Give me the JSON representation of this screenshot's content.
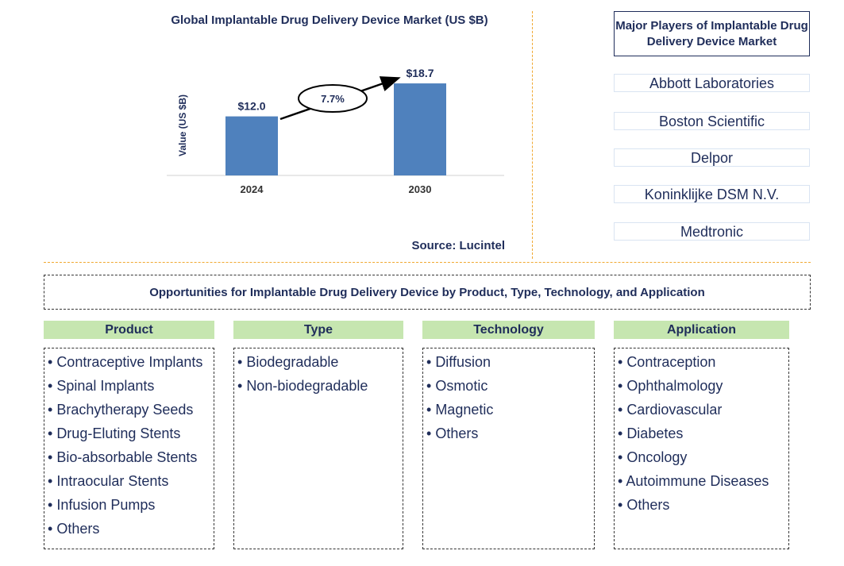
{
  "chart_data": {
    "type": "bar",
    "title": "Global Implantable Drug Delivery Device Market (US $B)",
    "ylabel": "Value (US $B)",
    "xlabel": "",
    "categories": [
      "2024",
      "2030"
    ],
    "values": [
      12.0,
      18.7
    ],
    "data_labels": [
      "$12.0",
      "$18.7"
    ],
    "ylim": [
      0,
      20
    ],
    "grid": false,
    "bar_color": "#4f81bd",
    "annotation": {
      "text": "7.7%",
      "type": "cagr-arrow"
    }
  },
  "source": "Source: Lucintel",
  "players": {
    "title": "Major Players of Implantable Drug Delivery Device Market",
    "items": [
      "Abbott Laboratories",
      "Boston Scientific",
      "Delpor",
      "Koninklijke DSM N.V.",
      "Medtronic"
    ]
  },
  "opportunities": {
    "title": "Opportunities for Implantable Drug Delivery Device by Product, Type, Technology, and Application",
    "categories": [
      {
        "name": "Product",
        "items": [
          "Contraceptive Implants",
          "Spinal Implants",
          "Brachytherapy Seeds",
          "Drug-Eluting Stents",
          "Bio-absorbable Stents",
          "Intraocular Stents",
          "Infusion Pumps",
          "Others"
        ]
      },
      {
        "name": "Type",
        "items": [
          "Biodegradable",
          "Non-biodegradable"
        ]
      },
      {
        "name": "Technology",
        "items": [
          "Diffusion",
          "Osmotic",
          "Magnetic",
          "Others"
        ]
      },
      {
        "name": "Application",
        "items": [
          "Contraception",
          "Ophthalmology",
          "Cardiovascular",
          "Diabetes",
          "Oncology",
          "Autoimmune Diseases",
          "Others"
        ]
      }
    ]
  }
}
